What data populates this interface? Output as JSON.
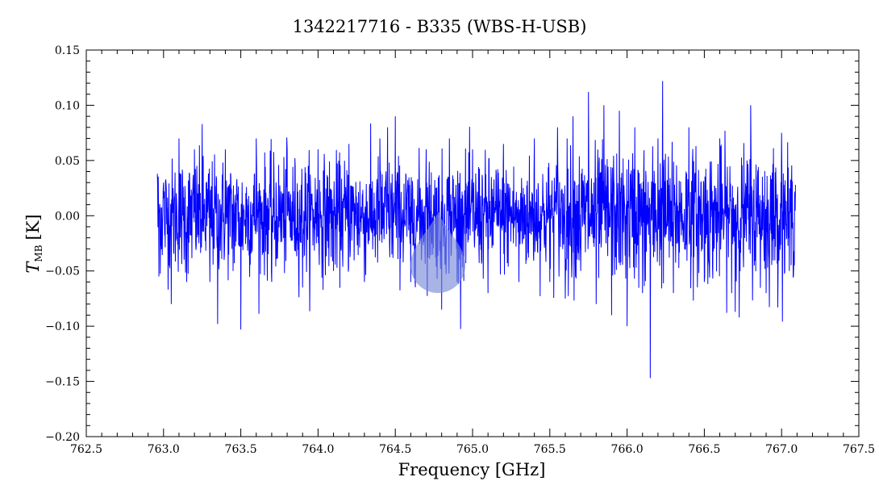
{
  "chart_data": {
    "type": "line",
    "title": "1342217716 - B335 (WBS-H-USB)",
    "xlabel": "Frequency [GHz]",
    "ylabel": {
      "main": "T",
      "sub": "MB",
      "unit": "[K]"
    },
    "xlim": [
      762.5,
      767.5
    ],
    "ylim": [
      -0.2,
      0.15
    ],
    "xticks": [
      "762.5",
      "763.0",
      "763.5",
      "764.0",
      "764.5",
      "765.0",
      "765.5",
      "766.0",
      "766.5",
      "767.0",
      "767.5"
    ],
    "xtick_values": [
      762.5,
      763.0,
      763.5,
      764.0,
      764.5,
      765.0,
      765.5,
      766.0,
      766.5,
      767.0,
      767.5
    ],
    "yticks": [
      "0.15",
      "0.10",
      "0.05",
      "0.00",
      "−0.05",
      "−0.10",
      "−0.15",
      "−0.20"
    ],
    "ytick_values": [
      0.15,
      0.1,
      0.05,
      0.0,
      -0.05,
      -0.1,
      -0.15,
      -0.2
    ],
    "grid": false,
    "series_color": "#0000ff",
    "series": [
      {
        "x_start": 762.96,
        "x_end": 767.09,
        "noise_rms": 0.03,
        "values": [
          [
            762.96,
            0.038
          ],
          [
            762.97,
            -0.055
          ],
          [
            763.0,
            0.03
          ],
          [
            763.05,
            -0.08
          ],
          [
            763.1,
            0.07
          ],
          [
            763.15,
            -0.06
          ],
          [
            763.2,
            0.06
          ],
          [
            763.25,
            0.083
          ],
          [
            763.3,
            -0.06
          ],
          [
            763.35,
            -0.098
          ],
          [
            763.4,
            0.06
          ],
          [
            763.45,
            -0.05
          ],
          [
            763.5,
            -0.103
          ],
          [
            763.6,
            0.07
          ],
          [
            763.7,
            -0.06
          ],
          [
            763.8,
            0.06
          ],
          [
            763.9,
            -0.065
          ],
          [
            764.0,
            0.06
          ],
          [
            764.1,
            -0.05
          ],
          [
            764.2,
            0.065
          ],
          [
            764.3,
            -0.06
          ],
          [
            764.4,
            0.07
          ],
          [
            764.45,
            0.08
          ],
          [
            764.5,
            0.09
          ],
          [
            764.6,
            -0.06
          ],
          [
            764.7,
            0.06
          ],
          [
            764.8,
            -0.085
          ],
          [
            764.85,
            0.07
          ],
          [
            764.9,
            -0.06
          ],
          [
            765.0,
            0.06
          ],
          [
            765.1,
            -0.07
          ],
          [
            765.2,
            0.065
          ],
          [
            765.3,
            -0.06
          ],
          [
            765.4,
            0.07
          ],
          [
            765.5,
            -0.06
          ],
          [
            765.55,
            0.08
          ],
          [
            765.6,
            -0.075
          ],
          [
            765.65,
            0.09
          ],
          [
            765.7,
            -0.05
          ],
          [
            765.75,
            0.112
          ],
          [
            765.8,
            -0.08
          ],
          [
            765.85,
            0.1
          ],
          [
            765.9,
            -0.09
          ],
          [
            765.95,
            0.095
          ],
          [
            766.0,
            -0.1
          ],
          [
            766.05,
            0.08
          ],
          [
            766.1,
            -0.07
          ],
          [
            766.15,
            -0.147
          ],
          [
            766.2,
            0.07
          ],
          [
            766.23,
            0.122
          ],
          [
            766.3,
            -0.07
          ],
          [
            766.4,
            0.08
          ],
          [
            766.5,
            -0.06
          ],
          [
            766.6,
            0.07
          ],
          [
            766.7,
            -0.087
          ],
          [
            766.8,
            0.1
          ],
          [
            766.9,
            -0.07
          ],
          [
            767.0,
            0.075
          ],
          [
            767.05,
            -0.05
          ],
          [
            767.09,
            0.028
          ]
        ]
      }
    ],
    "watermark_color": "#7a8ad8"
  }
}
